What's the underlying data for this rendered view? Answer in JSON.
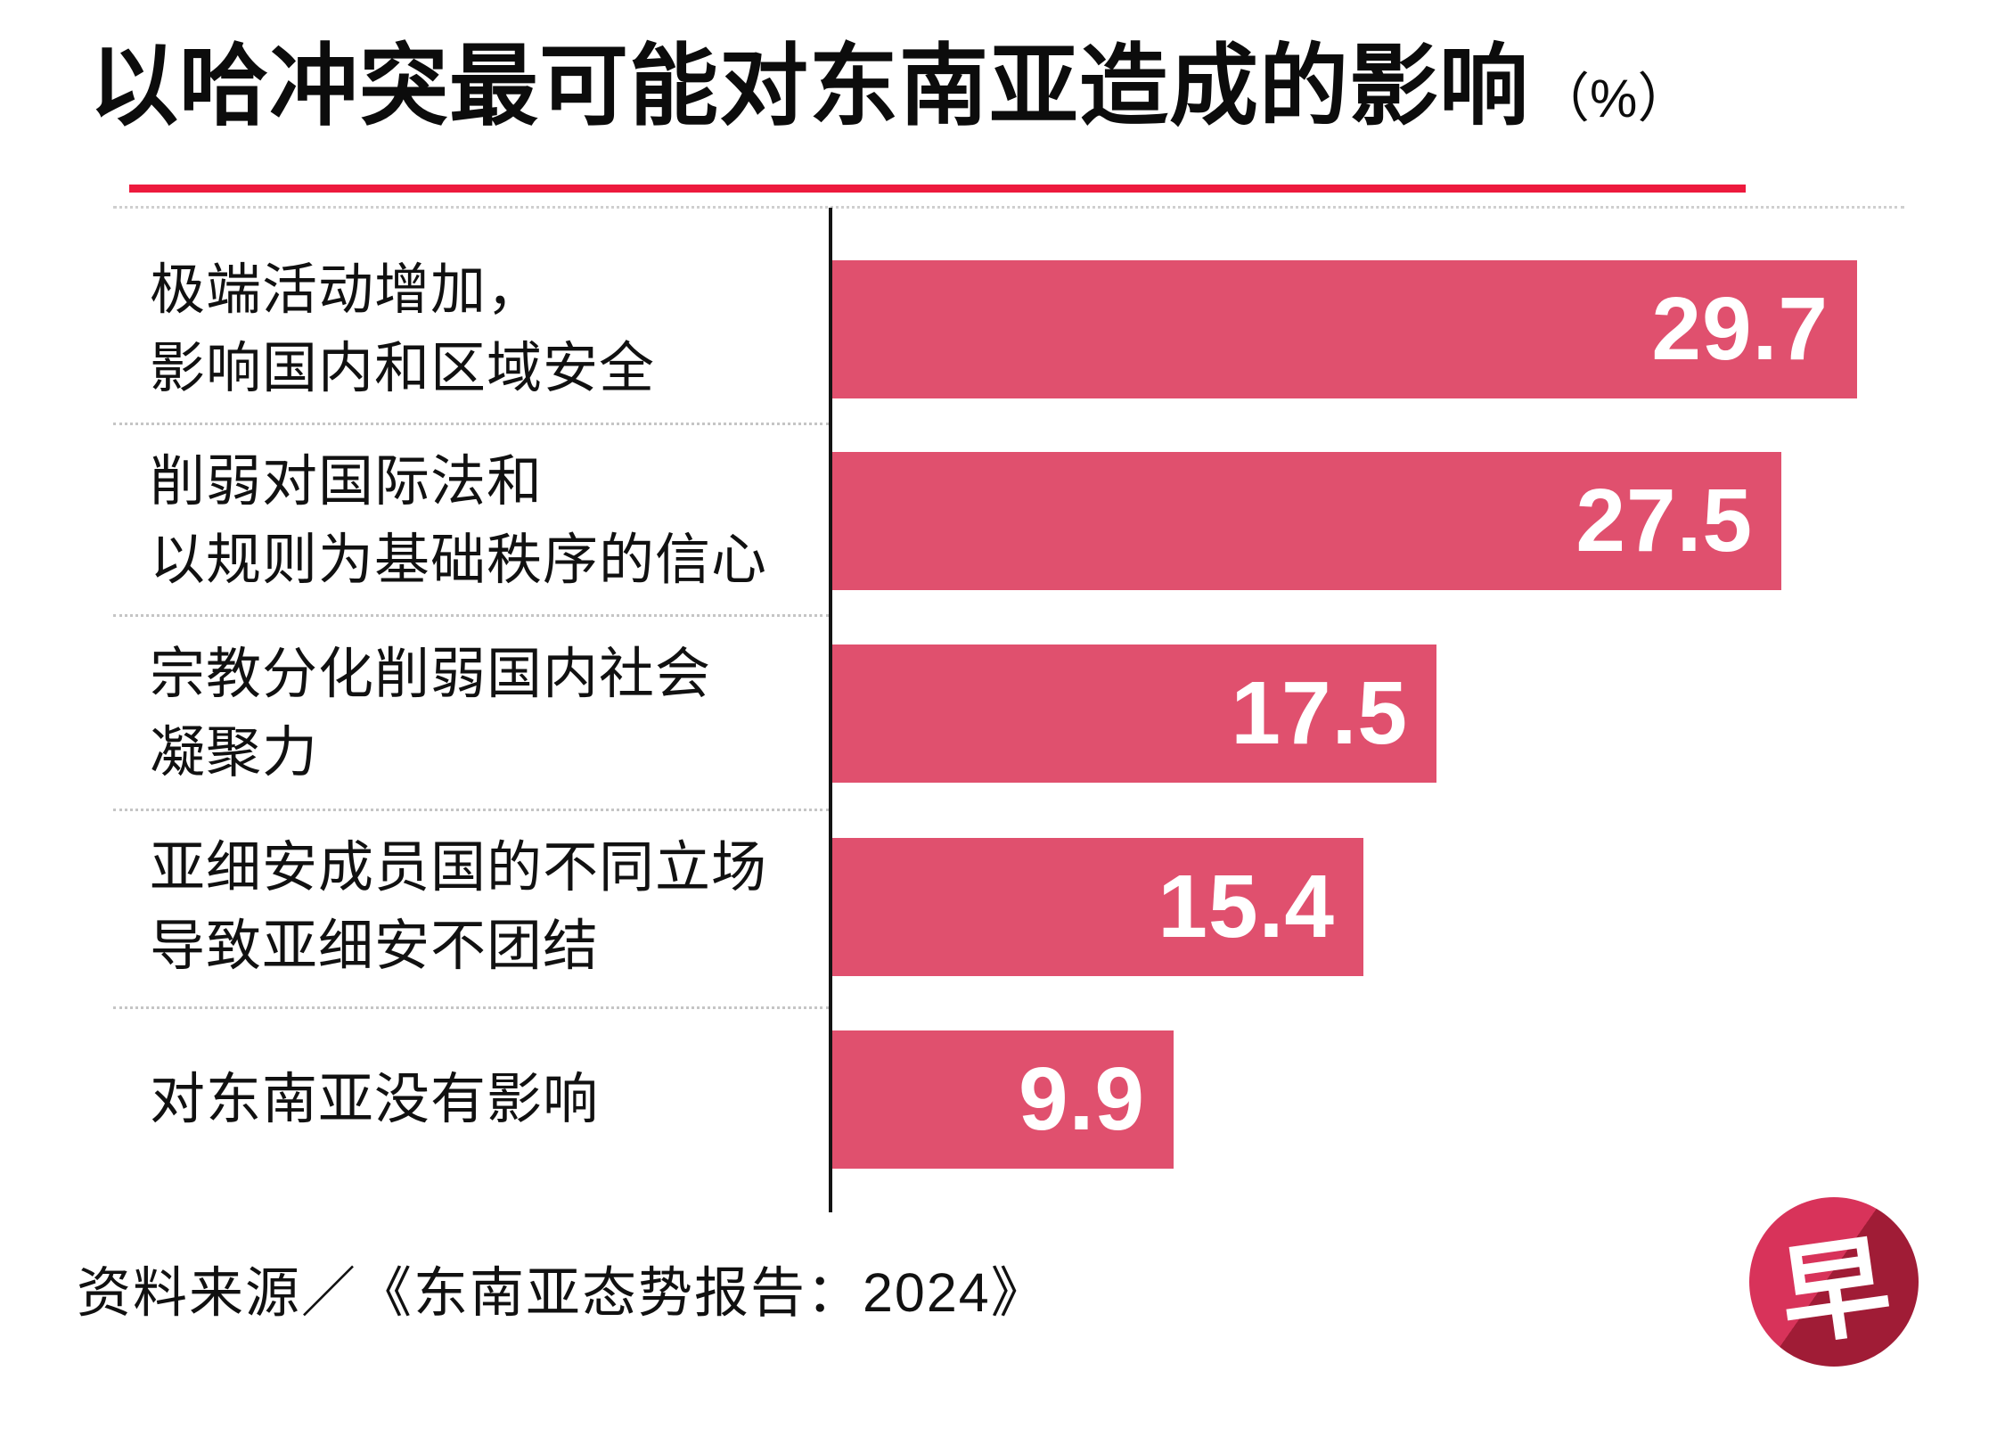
{
  "title": {
    "text": "以哈冲突最可能对东南亚造成的影响",
    "unit_label": "（%）"
  },
  "colors": {
    "bar": "#e0506e",
    "title_rule": "#ed1a3d",
    "axis": "#141414",
    "separator": "#c5c5c5",
    "value_text": "#ffffff",
    "logo_light_red": "#d8335a",
    "logo_dark_red": "#a01c36"
  },
  "chart_data": {
    "type": "bar",
    "orientation": "horizontal",
    "title": "以哈冲突最可能对东南亚造成的影响（%）",
    "unit": "%",
    "categories": [
      "极端活动增加，影响国内和区域安全",
      "削弱对国际法和以规则为基础秩序的信心",
      "宗教分化削弱国内社会凝聚力",
      "亚细安成员国的不同立场导致亚细安不团结",
      "对东南亚没有影响"
    ],
    "values": [
      29.7,
      27.5,
      17.5,
      15.4,
      9.9
    ],
    "xlim": [
      0,
      31
    ],
    "grid": false,
    "legend": false,
    "value_labels_inside_bars": true
  },
  "rows": [
    {
      "label_line1": "极端活动增加，",
      "label_line2": "影响国内和区域安全",
      "value_label": "29.7"
    },
    {
      "label_line1": "削弱对国际法和",
      "label_line2": "以规则为基础秩序的信心",
      "value_label": "27.5"
    },
    {
      "label_line1": "宗教分化削弱国内社会",
      "label_line2": "凝聚力",
      "value_label": "17.5"
    },
    {
      "label_line1": "亚细安成员国的不同立场",
      "label_line2": "导致亚细安不团结",
      "value_label": "15.4"
    },
    {
      "label_line1": "对东南亚没有影响",
      "label_line2": "",
      "value_label": "9.9"
    }
  ],
  "source": "资料来源／《东南亚态势报告：2024》",
  "logo": {
    "character": "早",
    "name": "zaobao-logo"
  }
}
